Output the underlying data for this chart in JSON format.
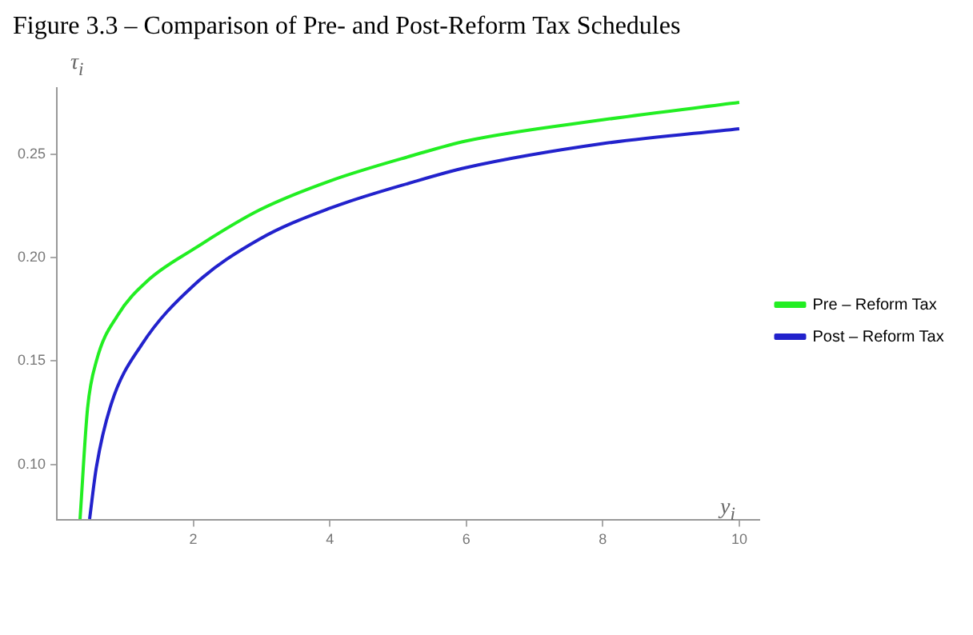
{
  "chart_data": {
    "type": "line",
    "title": "Figure 3.3 – Comparison of Pre- and Post-Reform Tax Schedules",
    "xlabel": "y$_{i}$",
    "ylabel": "τ$_{i}$",
    "xlim": [
      0,
      10.3
    ],
    "xticks": [
      2,
      4,
      6,
      8,
      10
    ],
    "ylim": [
      0.073,
      0.282
    ],
    "yticks": [
      {
        "value": 0.1,
        "label": "0.10"
      },
      {
        "value": 0.15,
        "label": "0.15"
      },
      {
        "value": 0.2,
        "label": "0.20"
      },
      {
        "value": 0.25,
        "label": "0.25"
      }
    ],
    "grid": false,
    "legend": "right",
    "marker": "none",
    "line_style": "solid",
    "series": [
      {
        "name": "Pre – Reform Tax",
        "color": "#22ee22",
        "x": [
          0.34,
          0.45,
          0.58,
          0.89,
          1.32,
          2,
          2.97,
          4,
          5.23,
          6,
          8,
          10
        ],
        "values": [
          0.0735,
          0.127,
          0.15,
          0.172,
          0.1885,
          0.204,
          0.223,
          0.237,
          0.2495,
          0.2564,
          0.2666,
          0.275
        ]
      },
      {
        "name": "Post – Reform Tax",
        "color": "#2222cc",
        "x": [
          0.48,
          0.58,
          0.8,
          1.24,
          2,
          2.97,
          4,
          5.23,
          6,
          8,
          10
        ],
        "values": [
          0.0735,
          0.0987,
          0.1295,
          0.1577,
          0.1864,
          0.2089,
          0.2238,
          0.2366,
          0.2435,
          0.2551,
          0.2623
        ]
      }
    ]
  }
}
